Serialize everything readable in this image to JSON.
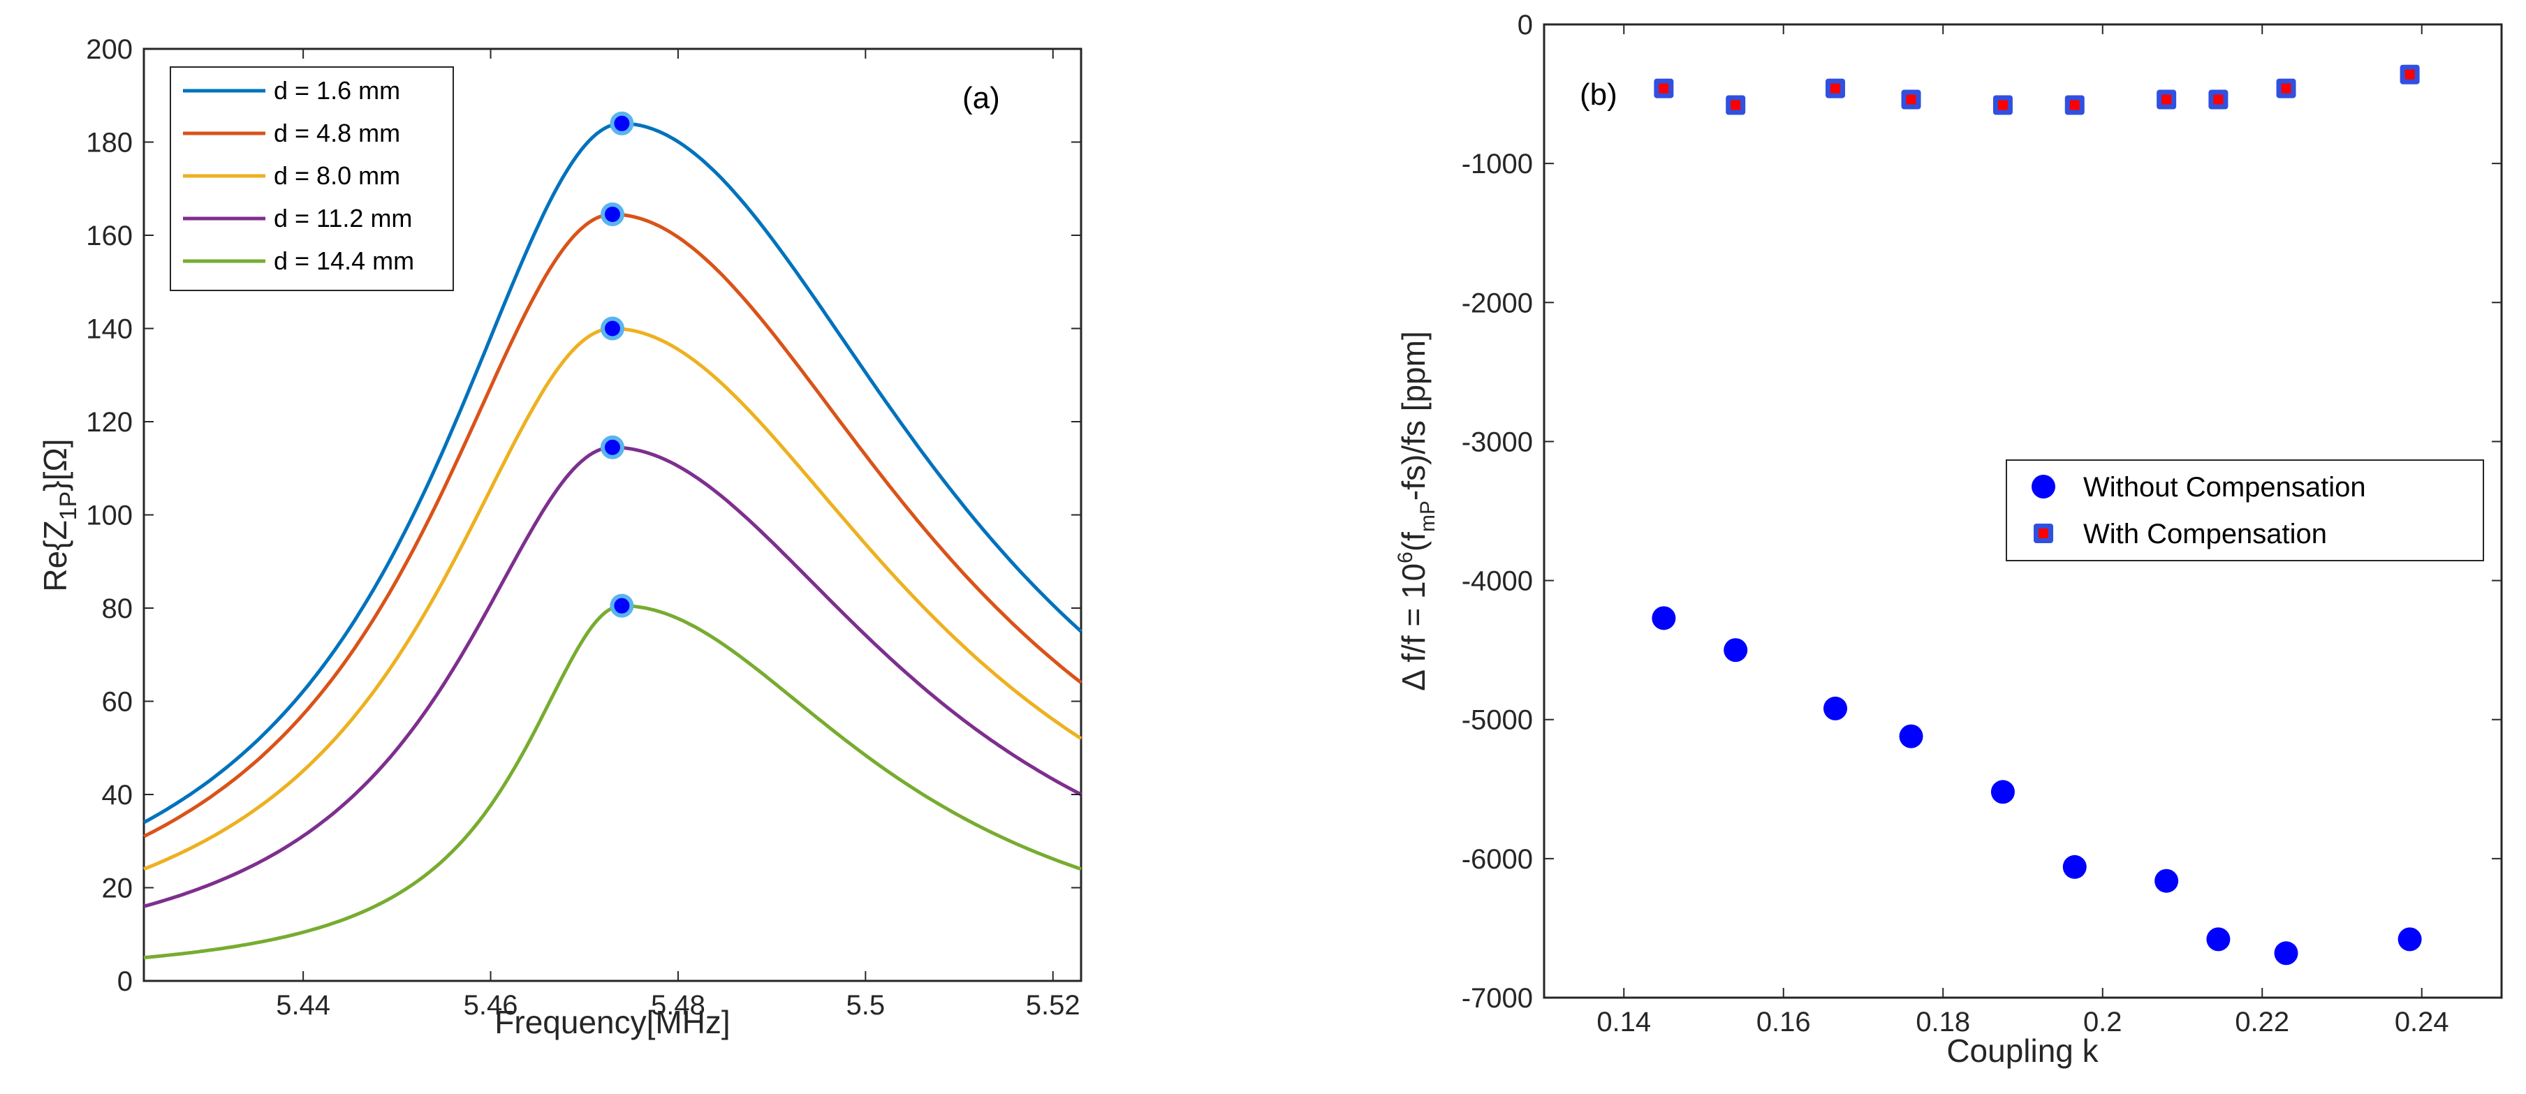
{
  "chart_data": [
    {
      "type": "line",
      "panel_label": "(a)",
      "xlabel": "Frequency[MHz]",
      "ylabel_parts": [
        "Re{Z",
        "1P",
        "}[Ω]"
      ],
      "xlim": [
        5.423,
        5.523
      ],
      "ylim": [
        0,
        200
      ],
      "xticks": [
        5.44,
        5.46,
        5.48,
        5.5,
        5.52
      ],
      "xtick_labels": [
        "5.44",
        "5.46",
        "5.48",
        "5.5",
        "5.52"
      ],
      "yticks": [
        0,
        20,
        40,
        60,
        80,
        100,
        120,
        140,
        160,
        180,
        200
      ],
      "ytick_labels": [
        "0",
        "20",
        "40",
        "60",
        "80",
        "100",
        "120",
        "140",
        "160",
        "180",
        "200"
      ],
      "legend_position": "top-left",
      "marker_color": "#0000ff",
      "marker_edge": "#5ab4f0",
      "series": [
        {
          "name": "d = 1.6 mm",
          "color": "#0072bd",
          "peak_x": 5.474,
          "peak_y": 184,
          "start_y": 34,
          "end_y": 75
        },
        {
          "name": "d = 4.8 mm",
          "color": "#d95319",
          "peak_x": 5.473,
          "peak_y": 164.5,
          "start_y": 31,
          "end_y": 64
        },
        {
          "name": "d = 8.0 mm",
          "color": "#edb120",
          "peak_x": 5.473,
          "peak_y": 140,
          "start_y": 24,
          "end_y": 52
        },
        {
          "name": "d = 11.2 mm",
          "color": "#7e2f8e",
          "peak_x": 5.473,
          "peak_y": 114.5,
          "start_y": 16,
          "end_y": 40
        },
        {
          "name": "d = 14.4 mm",
          "color": "#77ac30",
          "peak_x": 5.474,
          "peak_y": 80.5,
          "start_y": 5,
          "end_y": 24
        }
      ]
    },
    {
      "type": "scatter",
      "panel_label": "(b)",
      "xlabel": "Coupling k",
      "ylabel_parts": [
        "Δ f/f = 10",
        "6",
        "(f",
        "mP",
        "-fs)/fs [ppm]"
      ],
      "xlim": [
        0.13,
        0.25
      ],
      "ylim": [
        -7000,
        0
      ],
      "xticks": [
        0.14,
        0.16,
        0.18,
        0.2,
        0.22,
        0.24
      ],
      "xtick_labels": [
        "0.14",
        "0.16",
        "0.18",
        "0.2",
        "0.22",
        "0.24"
      ],
      "yticks": [
        0,
        -1000,
        -2000,
        -3000,
        -4000,
        -5000,
        -6000,
        -7000
      ],
      "ytick_labels": [
        "0",
        "-1000",
        "-2000",
        "-3000",
        "-4000",
        "-5000",
        "-6000",
        "-7000"
      ],
      "legend_position": "center-right",
      "series": [
        {
          "name": "Without Compensation",
          "marker": "circle",
          "color": "#0000ff",
          "x": [
            0.145,
            0.154,
            0.1665,
            0.176,
            0.1875,
            0.1965,
            0.208,
            0.2145,
            0.223,
            0.2385
          ],
          "y": [
            -4270,
            -4500,
            -4920,
            -5120,
            -5520,
            -6060,
            -6160,
            -6580,
            -6680,
            -6580
          ]
        },
        {
          "name": "With Compensation",
          "marker": "square",
          "color": "#ff0000",
          "edge_color": "#3050e0",
          "x": [
            0.145,
            0.154,
            0.1665,
            0.176,
            0.1875,
            0.1965,
            0.208,
            0.2145,
            0.223,
            0.2385
          ],
          "y": [
            -460,
            -580,
            -460,
            -540,
            -580,
            -580,
            -540,
            -540,
            -460,
            -360
          ]
        }
      ]
    }
  ]
}
